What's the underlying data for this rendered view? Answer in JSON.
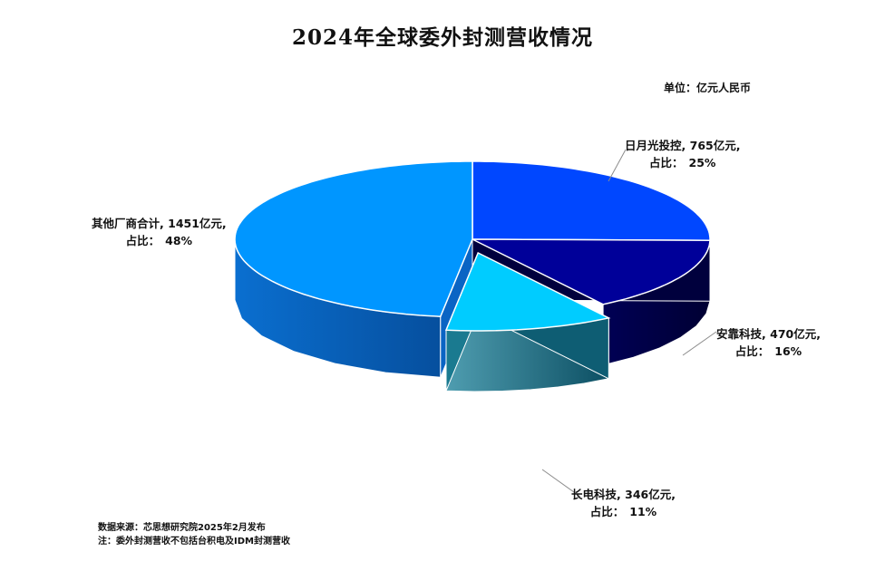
{
  "chart_data": {
    "type": "pie",
    "title": "2024年全球委外封测营收情况",
    "unit_label": "单位：亿元人民币",
    "slices": [
      {
        "name": "日月光投控",
        "value": 765,
        "value_text": "765亿元,",
        "pct_label": "占比：",
        "pct": "25%",
        "color": "#0047FF"
      },
      {
        "name": "安靠科技",
        "value": 470,
        "value_text": "470亿元,",
        "pct_label": "占比：",
        "pct": "16%",
        "color": "#000099"
      },
      {
        "name": "长电科技",
        "value": 346,
        "value_text": "346亿元,",
        "pct_label": "占比：",
        "pct": "11%",
        "color": "#00CCFF",
        "exploded": true
      },
      {
        "name": "其他厂商合计",
        "value": 1451,
        "value_text": "1451亿元,",
        "pct_label": "占比：",
        "pct": "48%",
        "color": "#0096FF"
      }
    ],
    "legend": "none"
  },
  "notes": {
    "source": "数据来源：芯思想研究院2025年2月发布",
    "note": "注：委外封测营收不包括台积电及IDM封测营收"
  }
}
